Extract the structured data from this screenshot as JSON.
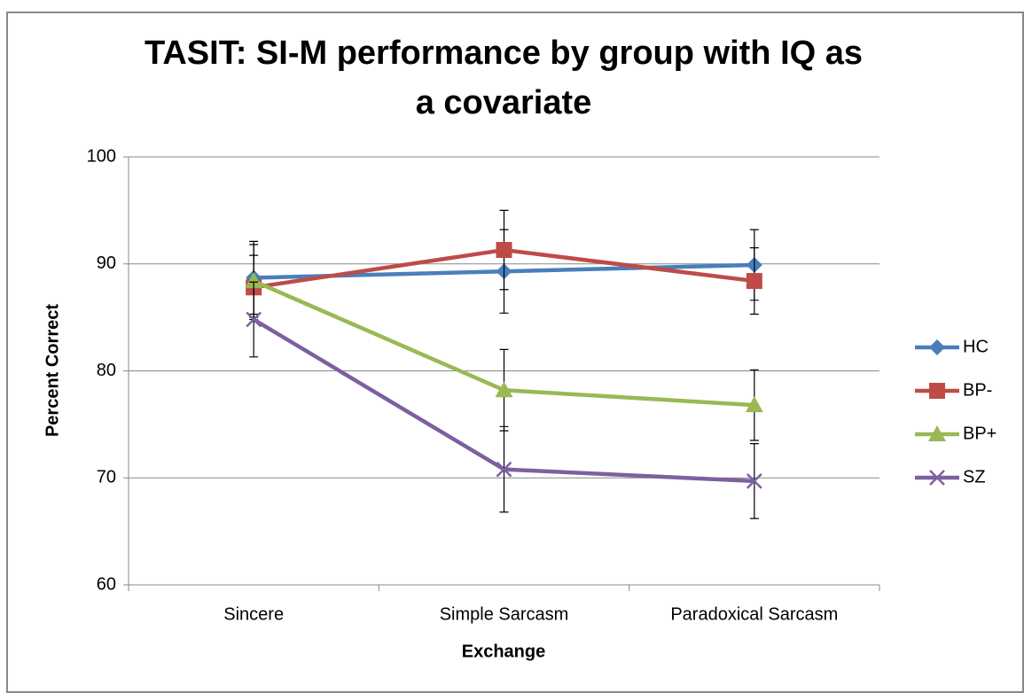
{
  "chart_data": {
    "type": "line",
    "title": [
      "TASIT: SI-M performance by group with IQ as",
      "a covariate"
    ],
    "x_label": "Exchange",
    "y_label": "Percent Correct",
    "categories": [
      "Sincere",
      "Simple Sarcasm",
      "Paradoxical Sarcasm"
    ],
    "ylim": [
      60,
      100
    ],
    "yticks": [
      60,
      70,
      80,
      90,
      100
    ],
    "grid": true,
    "legend": "right",
    "series": [
      {
        "name": "HC",
        "color": "#4a7ebb",
        "marker": "diamond",
        "values": [
          88.7,
          89.3,
          89.9
        ],
        "errors": [
          3.4,
          3.9,
          3.3
        ]
      },
      {
        "name": "BP-",
        "color": "#be4b48",
        "marker": "square",
        "values": [
          87.8,
          91.3,
          88.4
        ],
        "errors": [
          3.0,
          3.7,
          3.1
        ]
      },
      {
        "name": "BP+",
        "color": "#98b954",
        "marker": "triangle",
        "values": [
          88.4,
          78.2,
          76.8
        ],
        "errors": [
          3.4,
          3.8,
          3.3
        ]
      },
      {
        "name": "SZ",
        "color": "#7d60a0",
        "marker": "x",
        "values": [
          84.8,
          70.8,
          69.7
        ],
        "errors": [
          3.5,
          4.0,
          3.5
        ]
      }
    ]
  }
}
